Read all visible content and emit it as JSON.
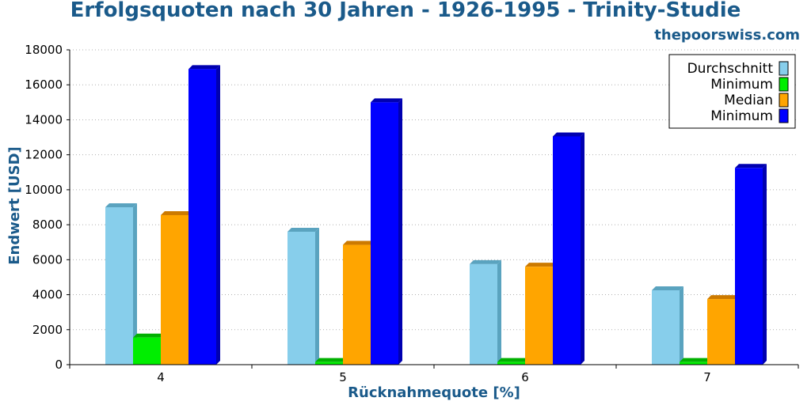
{
  "watermark": "thepoorswiss.com",
  "chart_data": {
    "type": "bar",
    "title": "Erfolgsquoten nach 30 Jahren - 1926-1995 - Trinity-Studie",
    "xlabel": "Rücknahmequote [%]",
    "ylabel": "Endwert [USD]",
    "categories": [
      "4",
      "5",
      "6",
      "7"
    ],
    "ylim": [
      0,
      18000
    ],
    "yticks": [
      0,
      2000,
      4000,
      6000,
      8000,
      10000,
      12000,
      14000,
      16000,
      18000
    ],
    "grid": true,
    "legend_position": "top-right",
    "series": [
      {
        "name": "Durchschnitt",
        "color": "#87ceeb",
        "shade": "#5aa3bf",
        "values": [
          9000,
          7600,
          5750,
          4250
        ]
      },
      {
        "name": "Minimum",
        "color": "#00ee00",
        "shade": "#00b000",
        "values": [
          1550,
          150,
          150,
          150
        ]
      },
      {
        "name": "Median",
        "color": "#ffa500",
        "shade": "#cc7a00",
        "values": [
          8550,
          6850,
          5600,
          3750
        ]
      },
      {
        "name": "Minimum",
        "color": "#0000ff",
        "shade": "#0000b0",
        "values": [
          16900,
          15000,
          13050,
          11250
        ]
      }
    ]
  }
}
